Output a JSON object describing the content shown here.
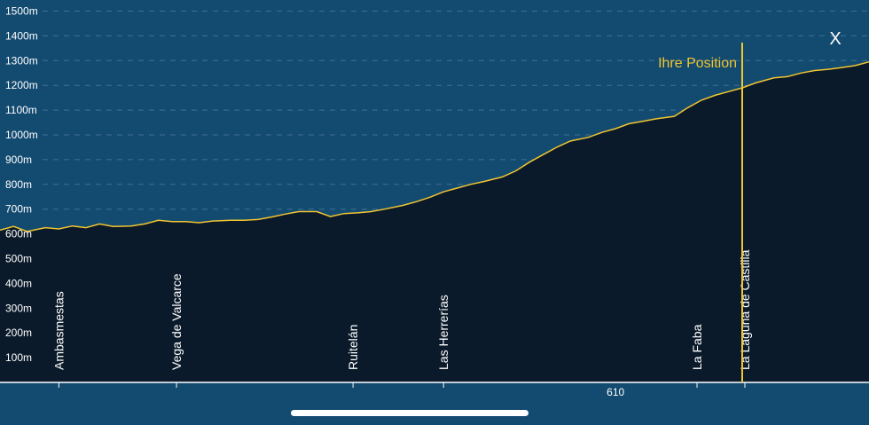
{
  "close_label": "X",
  "colors": {
    "sky": "#134a70",
    "ground": "#0b1a2a",
    "profile_line": "#f0c530",
    "position_line": "#f0c530",
    "grid": "#5f8aa8"
  },
  "chart_data": {
    "type": "area",
    "ylim": [
      0,
      1500
    ],
    "y_ticks": [
      {
        "value": 100,
        "label": "100m"
      },
      {
        "value": 200,
        "label": "200m"
      },
      {
        "value": 300,
        "label": "300m"
      },
      {
        "value": 400,
        "label": "400m"
      },
      {
        "value": 500,
        "label": "500m"
      },
      {
        "value": 600,
        "label": "600m"
      },
      {
        "value": 700,
        "label": "700m"
      },
      {
        "value": 800,
        "label": "800m"
      },
      {
        "value": 900,
        "label": "900m"
      },
      {
        "value": 1000,
        "label": "1000m"
      },
      {
        "value": 1100,
        "label": "1100m"
      },
      {
        "value": 1200,
        "label": "1200m"
      },
      {
        "value": 1300,
        "label": "1300m"
      },
      {
        "value": 1400,
        "label": "1400m"
      },
      {
        "value": 1500,
        "label": "1500m"
      }
    ],
    "grid": true,
    "xlim": [
      596.4,
      615.6
    ],
    "x_tick_labels": [
      {
        "value": 610,
        "label": "610"
      }
    ],
    "elevation_profile": {
      "x": [
        596.4,
        596.7,
        597.0,
        597.4,
        597.7,
        598.0,
        598.3,
        598.6,
        598.9,
        599.3,
        599.6,
        599.9,
        600.2,
        600.5,
        600.8,
        601.1,
        601.5,
        601.8,
        602.1,
        602.4,
        602.7,
        603.0,
        603.4,
        603.7,
        604.0,
        604.3,
        604.6,
        604.9,
        605.3,
        605.6,
        605.9,
        606.2,
        606.5,
        606.8,
        607.1,
        607.5,
        607.8,
        608.1,
        608.4,
        608.7,
        609.0,
        609.4,
        609.7,
        610.0,
        610.3,
        610.6,
        610.9,
        611.3,
        611.6,
        611.9,
        612.2,
        612.5,
        612.8,
        613.1,
        613.5,
        613.8,
        614.1,
        614.4,
        614.7,
        615.0,
        615.3,
        615.6
      ],
      "y": [
        615,
        630,
        610,
        625,
        620,
        632,
        625,
        640,
        630,
        632,
        640,
        655,
        650,
        650,
        645,
        652,
        655,
        655,
        658,
        668,
        680,
        690,
        690,
        670,
        682,
        685,
        690,
        700,
        715,
        730,
        748,
        770,
        785,
        800,
        812,
        830,
        855,
        890,
        920,
        950,
        975,
        990,
        1010,
        1025,
        1045,
        1055,
        1065,
        1075,
        1110,
        1140,
        1160,
        1175,
        1190,
        1210,
        1230,
        1235,
        1250,
        1260,
        1265,
        1272,
        1280,
        1295
      ]
    },
    "waypoints": [
      {
        "name": "Ambasmestas",
        "x": 597.7
      },
      {
        "name": "Vega de Valcarce",
        "x": 600.3
      },
      {
        "name": "Ruitelán",
        "x": 604.2
      },
      {
        "name": "Las Herrerías",
        "x": 606.2
      },
      {
        "name": "La Faba",
        "x": 611.8
      },
      {
        "name": "La Laguna de Castilla",
        "x": 615.8
      }
    ],
    "current_position": {
      "label": "Ihre Position",
      "x": 615.9,
      "elevation": 1160
    }
  }
}
